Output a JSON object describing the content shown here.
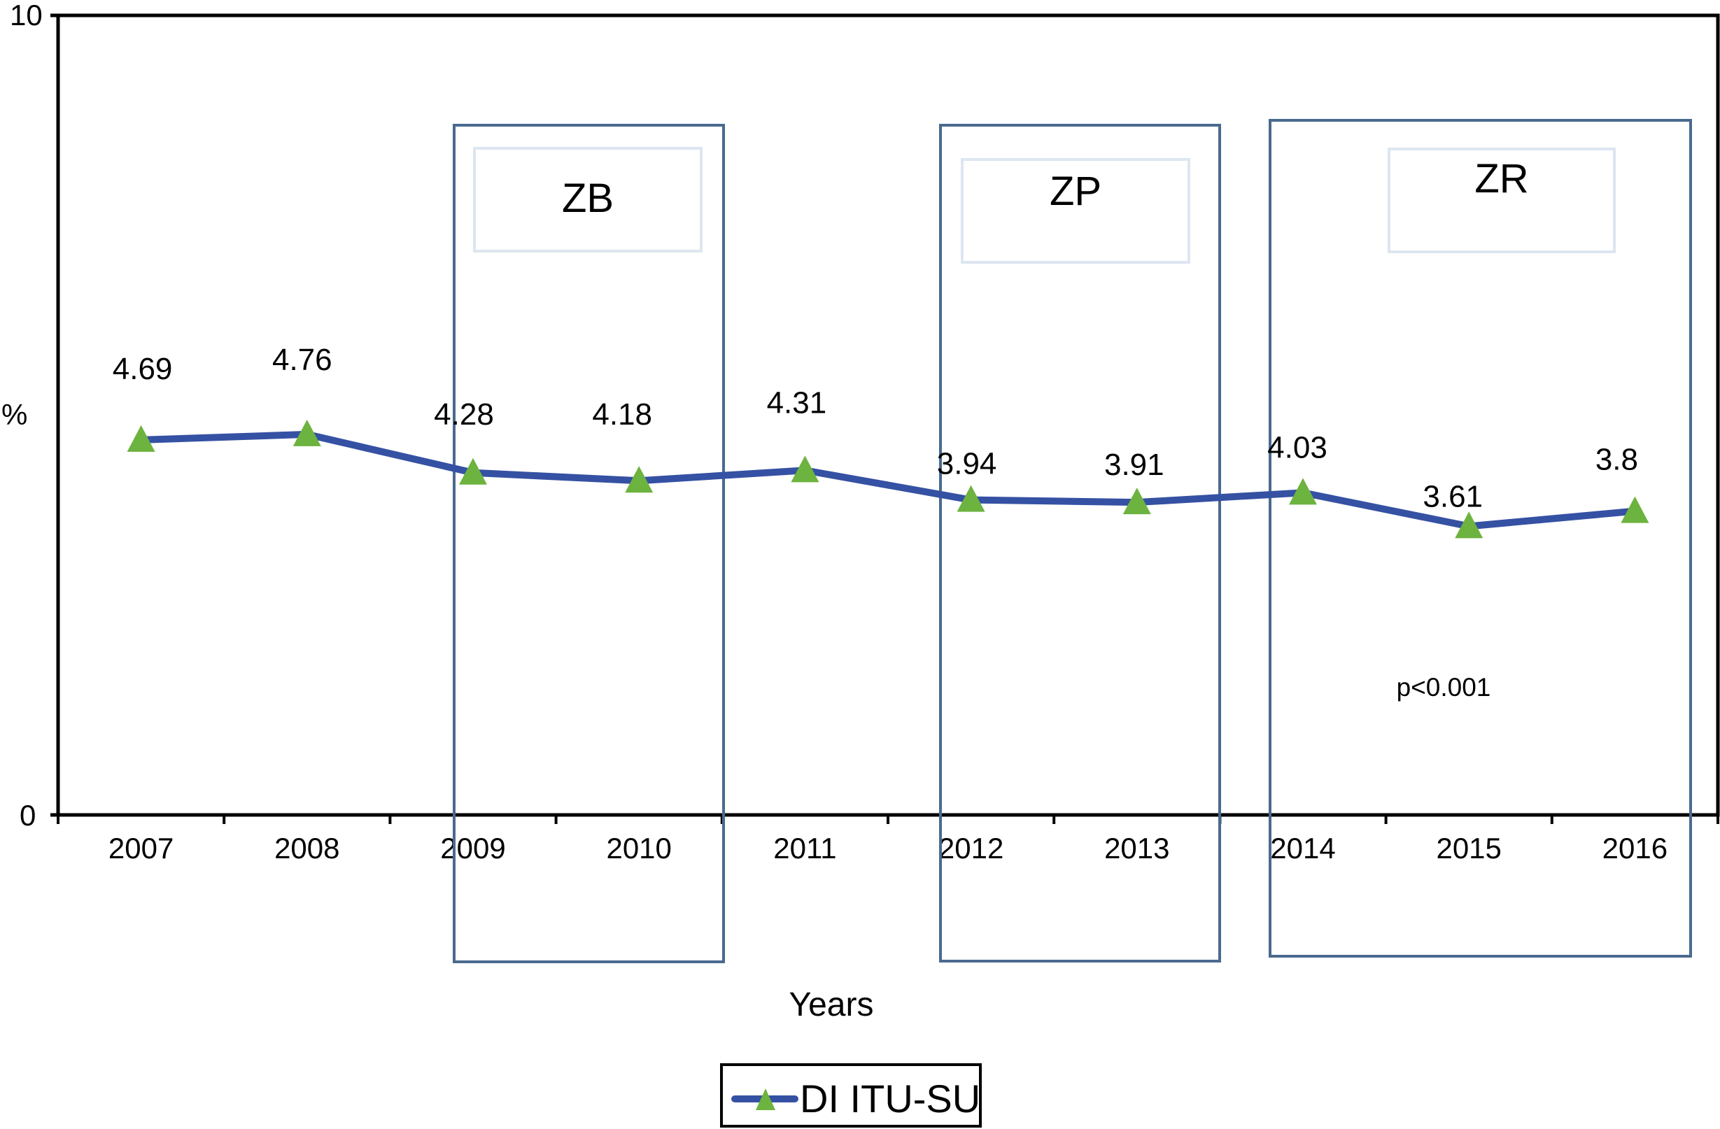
{
  "chart_data": {
    "type": "line",
    "title": "",
    "xlabel": "Years",
    "ylabel": "%",
    "ylim": [
      0,
      10
    ],
    "yticks": [
      "0",
      "10"
    ],
    "categories": [
      "2007",
      "2008",
      "2009",
      "2010",
      "2011",
      "2012",
      "2013",
      "2014",
      "2015",
      "2016"
    ],
    "series": [
      {
        "name": "DI ITU-SU",
        "values": [
          4.69,
          4.76,
          4.28,
          4.18,
          4.31,
          3.94,
          3.91,
          4.03,
          3.61,
          3.8
        ],
        "labels": [
          "4.69",
          "4.76",
          "4.28",
          "4.18",
          "4.31",
          "3.94",
          "3.91",
          "4.03",
          "3.61",
          "3.8"
        ],
        "line_color": "#3551a3",
        "marker": "triangle",
        "marker_color": "#6db33f"
      }
    ],
    "annotations": [
      {
        "label": "ZB",
        "span": [
          "2009",
          "2010"
        ]
      },
      {
        "label": "ZP",
        "span": [
          "2012",
          "2013"
        ]
      },
      {
        "label": "ZR",
        "span": [
          "2014",
          "2016"
        ]
      }
    ],
    "note": "p<0.001",
    "legend": {
      "position": "bottom",
      "entries": [
        "DI ITU-SU"
      ]
    },
    "grid": false,
    "colors": {
      "axis": "#000000",
      "region_border": "#4a6a8f",
      "region_label_border": "#dde6f0"
    }
  }
}
